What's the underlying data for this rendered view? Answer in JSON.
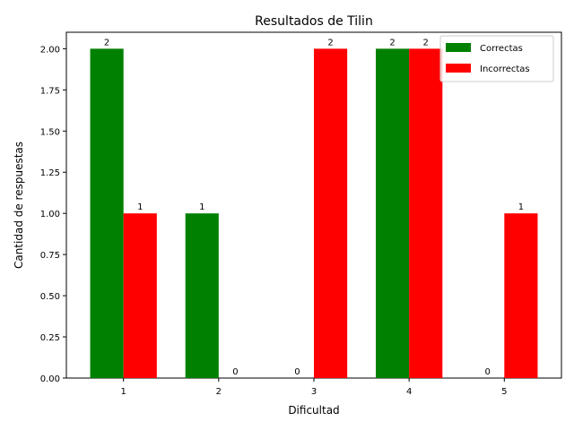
{
  "chart_data": {
    "type": "bar",
    "title": "Resultados de Tilin",
    "xlabel": "Dificultad",
    "ylabel": "Cantidad de respuestas",
    "categories": [
      "1",
      "2",
      "3",
      "4",
      "5"
    ],
    "series": [
      {
        "name": "Correctas",
        "values": [
          2,
          1,
          0,
          2,
          0
        ],
        "color": "#008000"
      },
      {
        "name": "Incorrectas",
        "values": [
          1,
          0,
          2,
          2,
          1
        ],
        "color": "#ff0000"
      }
    ],
    "ylim": [
      0,
      2.1
    ],
    "yticks": [
      "0.00",
      "0.25",
      "0.50",
      "0.75",
      "1.00",
      "1.25",
      "1.50",
      "1.75",
      "2.00"
    ],
    "legend_position": "top-right",
    "grid": false
  }
}
